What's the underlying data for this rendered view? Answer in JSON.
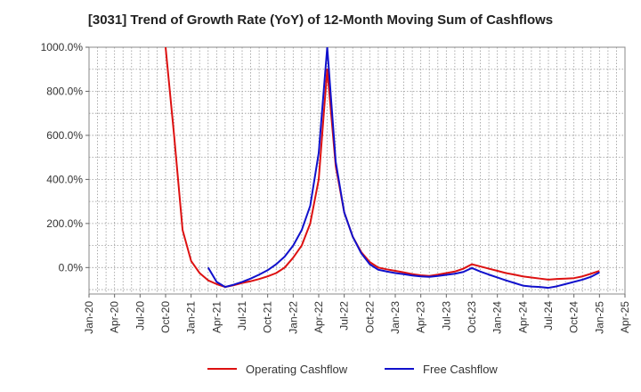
{
  "chart_data": {
    "type": "line",
    "title": "[3031]  Trend of Growth Rate (YoY) of 12-Month Moving Sum of Cashflows",
    "xlabel": "",
    "ylabel": "",
    "x_ticks": [
      "Jan-20",
      "Apr-20",
      "Jul-20",
      "Oct-20",
      "Jan-21",
      "Apr-21",
      "Jul-21",
      "Oct-21",
      "Jan-22",
      "Apr-22",
      "Jul-22",
      "Oct-22",
      "Jan-23",
      "Apr-23",
      "Jul-23",
      "Oct-23",
      "Jan-24",
      "Apr-24",
      "Jul-24",
      "Oct-24",
      "Jan-25",
      "Apr-25"
    ],
    "y_ticks": [
      "0.0%",
      "200.0%",
      "400.0%",
      "600.0%",
      "800.0%",
      "1000.0%"
    ],
    "ylim": [
      -120,
      1000
    ],
    "grid": true,
    "legend_position": "bottom",
    "series": [
      {
        "name": "Operating Cashflow",
        "color": "#dd1111",
        "points": [
          [
            "Oct-20",
            1000
          ],
          [
            "Nov-20",
            600
          ],
          [
            "Dec-20",
            170
          ],
          [
            "Jan-21",
            30
          ],
          [
            "Feb-21",
            -25
          ],
          [
            "Mar-21",
            -58
          ],
          [
            "Apr-21",
            -75
          ],
          [
            "May-21",
            -88
          ],
          [
            "Jun-21",
            -80
          ],
          [
            "Jul-21",
            -70
          ],
          [
            "Aug-21",
            -62
          ],
          [
            "Sep-21",
            -52
          ],
          [
            "Oct-21",
            -40
          ],
          [
            "Nov-21",
            -25
          ],
          [
            "Dec-21",
            0
          ],
          [
            "Jan-22",
            45
          ],
          [
            "Feb-22",
            100
          ],
          [
            "Mar-22",
            200
          ],
          [
            "Apr-22",
            400
          ],
          [
            "May-22",
            900
          ],
          [
            "Jun-22",
            460
          ],
          [
            "Jul-22",
            250
          ],
          [
            "Aug-22",
            140
          ],
          [
            "Sep-22",
            70
          ],
          [
            "Oct-22",
            25
          ],
          [
            "Nov-22",
            0
          ],
          [
            "Dec-22",
            -8
          ],
          [
            "Jan-23",
            -15
          ],
          [
            "Feb-23",
            -22
          ],
          [
            "Mar-23",
            -30
          ],
          [
            "Apr-23",
            -35
          ],
          [
            "May-23",
            -38
          ],
          [
            "Jun-23",
            -32
          ],
          [
            "Jul-23",
            -25
          ],
          [
            "Aug-23",
            -18
          ],
          [
            "Sep-23",
            -5
          ],
          [
            "Oct-23",
            15
          ],
          [
            "Nov-23",
            5
          ],
          [
            "Dec-23",
            -5
          ],
          [
            "Jan-24",
            -15
          ],
          [
            "Feb-24",
            -25
          ],
          [
            "Mar-24",
            -32
          ],
          [
            "Apr-24",
            -40
          ],
          [
            "May-24",
            -45
          ],
          [
            "Jun-24",
            -50
          ],
          [
            "Jul-24",
            -55
          ],
          [
            "Aug-24",
            -52
          ],
          [
            "Sep-24",
            -50
          ],
          [
            "Oct-24",
            -48
          ],
          [
            "Nov-24",
            -40
          ],
          [
            "Dec-24",
            -28
          ],
          [
            "Jan-25",
            -15
          ]
        ]
      },
      {
        "name": "Free Cashflow",
        "color": "#1111cc",
        "points": [
          [
            "Mar-21",
            0
          ],
          [
            "Apr-21",
            -65
          ],
          [
            "May-21",
            -88
          ],
          [
            "Jun-21",
            -78
          ],
          [
            "Jul-21",
            -65
          ],
          [
            "Aug-21",
            -50
          ],
          [
            "Sep-21",
            -32
          ],
          [
            "Oct-21",
            -12
          ],
          [
            "Nov-21",
            15
          ],
          [
            "Dec-21",
            50
          ],
          [
            "Jan-22",
            100
          ],
          [
            "Feb-22",
            170
          ],
          [
            "Mar-22",
            280
          ],
          [
            "Apr-22",
            520
          ],
          [
            "May-22",
            1000
          ],
          [
            "Jun-22",
            480
          ],
          [
            "Jul-22",
            250
          ],
          [
            "Aug-22",
            140
          ],
          [
            "Sep-22",
            65
          ],
          [
            "Oct-22",
            15
          ],
          [
            "Nov-22",
            -10
          ],
          [
            "Dec-22",
            -18
          ],
          [
            "Jan-23",
            -25
          ],
          [
            "Feb-23",
            -30
          ],
          [
            "Mar-23",
            -36
          ],
          [
            "Apr-23",
            -40
          ],
          [
            "May-23",
            -42
          ],
          [
            "Jun-23",
            -38
          ],
          [
            "Jul-23",
            -33
          ],
          [
            "Aug-23",
            -28
          ],
          [
            "Sep-23",
            -20
          ],
          [
            "Oct-23",
            -2
          ],
          [
            "Nov-23",
            -18
          ],
          [
            "Dec-23",
            -32
          ],
          [
            "Jan-24",
            -45
          ],
          [
            "Feb-24",
            -58
          ],
          [
            "Mar-24",
            -70
          ],
          [
            "Apr-24",
            -82
          ],
          [
            "May-24",
            -86
          ],
          [
            "Jun-24",
            -88
          ],
          [
            "Jul-24",
            -92
          ],
          [
            "Aug-24",
            -85
          ],
          [
            "Sep-24",
            -75
          ],
          [
            "Oct-24",
            -65
          ],
          [
            "Nov-24",
            -55
          ],
          [
            "Dec-24",
            -42
          ],
          [
            "Jan-25",
            -22
          ]
        ]
      }
    ]
  }
}
